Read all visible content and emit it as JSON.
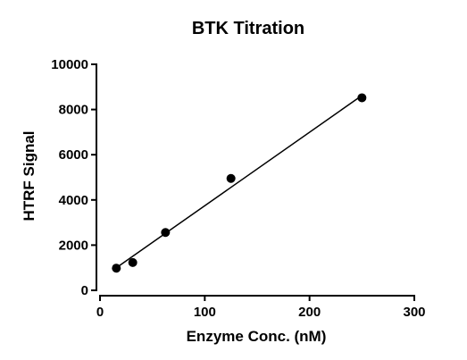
{
  "chart_data": {
    "type": "scatter",
    "title": "BTK Titration",
    "xlabel": "Enzyme Conc. (nM)",
    "ylabel": "HTRF Signal",
    "xlim": [
      0,
      300
    ],
    "ylim": [
      0,
      10000
    ],
    "x_ticks": [
      "0",
      "100",
      "200",
      "300"
    ],
    "y_ticks": [
      "0",
      "2000",
      "4000",
      "6000",
      "8000",
      "10000"
    ],
    "grid": false,
    "legend": "none",
    "points": [
      {
        "x": 15.6,
        "y": 980
      },
      {
        "x": 31.25,
        "y": 1230
      },
      {
        "x": 62.5,
        "y": 2560
      },
      {
        "x": 125,
        "y": 4950
      },
      {
        "x": 250,
        "y": 8520
      }
    ],
    "fit_line": {
      "x": [
        15.6,
        250
      ],
      "y": [
        1000,
        8620
      ]
    },
    "colors": {
      "marker": "#000000",
      "line": "#000000"
    }
  }
}
